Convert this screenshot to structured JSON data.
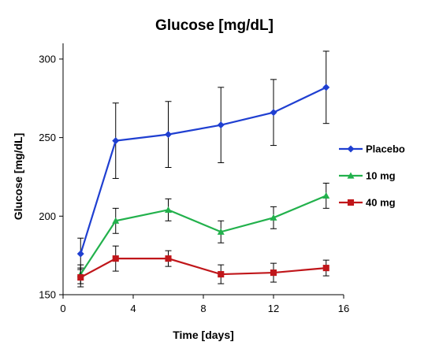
{
  "chart_data": {
    "type": "line",
    "title": "Glucose [mg/dL]",
    "xlabel": "Time [days]",
    "ylabel": "Glucose [mg/dL]",
    "xlim": [
      0,
      16
    ],
    "ylim": [
      150,
      310
    ],
    "xticks": [
      0,
      4,
      8,
      12,
      16
    ],
    "yticks": [
      150,
      200,
      250,
      300
    ],
    "grid": false,
    "legend_position": "right",
    "x": [
      1,
      3,
      6,
      9,
      12,
      15
    ],
    "series": [
      {
        "name": "Placebo",
        "color": "#1f3fd1",
        "marker": "diamond",
        "values": [
          176,
          248,
          252,
          258,
          266,
          282
        ],
        "error": [
          10,
          24,
          21,
          24,
          21,
          23
        ]
      },
      {
        "name": "10 mg",
        "color": "#22b14c",
        "marker": "triangle",
        "values": [
          163,
          197,
          204,
          190,
          199,
          213
        ],
        "error": [
          6,
          8,
          7,
          7,
          7,
          8
        ]
      },
      {
        "name": "40 mg",
        "color": "#c0161a",
        "marker": "square",
        "values": [
          161,
          173,
          173,
          163,
          164,
          167
        ],
        "error": [
          6,
          8,
          5,
          6,
          6,
          5
        ]
      }
    ]
  }
}
